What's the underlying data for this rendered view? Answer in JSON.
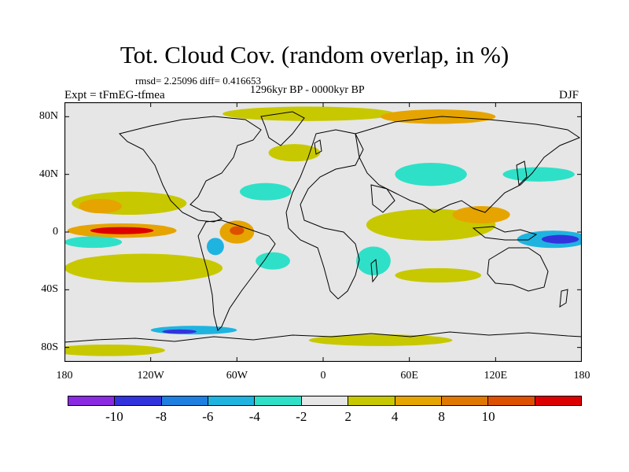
{
  "title": "Tot. Cloud Cov. (random overlap, in %)",
  "stats": "rmsd= 2.25096 diff= 0.416653",
  "period": "1296kyr BP - 0000kyr BP",
  "experiment": "Expt = tFmEG-tfmea",
  "season": "DJF",
  "map": {
    "background": "#e6e6e6",
    "lat_ticks": [
      {
        "label": "80N",
        "lat": 80
      },
      {
        "label": "40N",
        "lat": 40
      },
      {
        "label": "0",
        "lat": 0
      },
      {
        "label": "40S",
        "lat": -40
      },
      {
        "label": "80S",
        "lat": -80
      }
    ],
    "lon_ticks": [
      {
        "label": "180",
        "lon": -180
      },
      {
        "label": "120W",
        "lon": -120
      },
      {
        "label": "60W",
        "lon": -60
      },
      {
        "label": "0",
        "lon": 0
      },
      {
        "label": "60E",
        "lon": 60
      },
      {
        "label": "120E",
        "lon": 120
      },
      {
        "label": "180",
        "lon": 180
      }
    ],
    "lat_range": [
      -90,
      90
    ],
    "lon_range": [
      -180,
      180
    ]
  },
  "colorbar": {
    "colors": [
      "#8a2be2",
      "#3333dd",
      "#1f7fe0",
      "#1fb4e0",
      "#2fe0c8",
      "#e6e6e6",
      "#c8c800",
      "#e6a400",
      "#e07800",
      "#dd5000",
      "#dd0000"
    ],
    "labels": [
      {
        "text": "-10",
        "boundary": 1
      },
      {
        "text": "-8",
        "boundary": 2
      },
      {
        "text": "-6",
        "boundary": 3
      },
      {
        "text": "-4",
        "boundary": 4
      },
      {
        "text": "-2",
        "boundary": 5
      },
      {
        "text": "2",
        "boundary": 6
      },
      {
        "text": "4",
        "boundary": 7
      },
      {
        "text": "8",
        "boundary": 8
      },
      {
        "text": "10",
        "boundary": 9
      }
    ]
  },
  "anomaly_regions": [
    {
      "name": "tropical-east-pacific-positive",
      "lon": -140,
      "lat": 1,
      "rx": 38,
      "ry": 5,
      "color": "#e6a400"
    },
    {
      "name": "tropical-east-pacific-core",
      "lon": -140,
      "lat": 1,
      "rx": 22,
      "ry": 2.5,
      "color": "#dd0000"
    },
    {
      "name": "east-pacific-negative",
      "lon": -160,
      "lat": -7,
      "rx": 20,
      "ry": 4,
      "color": "#2fe0c8"
    },
    {
      "name": "south-pacific-convergence",
      "lon": -135,
      "lat": -22,
      "rx": 40,
      "ry": 6,
      "color": "#e6a400"
    },
    {
      "name": "south-pacific-outer",
      "lon": -125,
      "lat": -25,
      "rx": 55,
      "ry": 10,
      "color": "#c8c800"
    },
    {
      "name": "north-pacific-band",
      "lon": -135,
      "lat": 20,
      "rx": 40,
      "ry": 8,
      "color": "#c8c800"
    },
    {
      "name": "north-pacific-core",
      "lon": -155,
      "lat": 18,
      "rx": 15,
      "ry": 5,
      "color": "#e6a400"
    },
    {
      "name": "amazon-positive",
      "lon": -60,
      "lat": 0,
      "rx": 12,
      "ry": 8,
      "color": "#e6a400"
    },
    {
      "name": "amazon-core",
      "lon": -60,
      "lat": 1,
      "rx": 5,
      "ry": 3,
      "color": "#dd5000"
    },
    {
      "name": "south-america-negative",
      "lon": -75,
      "lat": -10,
      "rx": 6,
      "ry": 6,
      "color": "#1fb4e0"
    },
    {
      "name": "south-atlantic-negative",
      "lon": -35,
      "lat": -20,
      "rx": 12,
      "ry": 6,
      "color": "#2fe0c8"
    },
    {
      "name": "atlantic-north-negative",
      "lon": -40,
      "lat": 28,
      "rx": 18,
      "ry": 6,
      "color": "#2fe0c8"
    },
    {
      "name": "north-atlantic-positive",
      "lon": -20,
      "lat": 55,
      "rx": 18,
      "ry": 6,
      "color": "#c8c800"
    },
    {
      "name": "arctic-positive",
      "lon": -10,
      "lat": 82,
      "rx": 60,
      "ry": 5,
      "color": "#c8c800"
    },
    {
      "name": "siberia-positive",
      "lon": 80,
      "lat": 80,
      "rx": 40,
      "ry": 5,
      "color": "#e6a400"
    },
    {
      "name": "central-asia-negative",
      "lon": 75,
      "lat": 40,
      "rx": 25,
      "ry": 8,
      "color": "#2fe0c8"
    },
    {
      "name": "indian-ocean-positive",
      "lon": 75,
      "lat": 8,
      "rx": 35,
      "ry": 7,
      "color": "#e6a400"
    },
    {
      "name": "indian-ocean-outer",
      "lon": 75,
      "lat": 5,
      "rx": 45,
      "ry": 11,
      "color": "#c8c800"
    },
    {
      "name": "south-africa-negative",
      "lon": 35,
      "lat": -20,
      "rx": 12,
      "ry": 10,
      "color": "#2fe0c8"
    },
    {
      "name": "maritime-continent-positive",
      "lon": 110,
      "lat": 12,
      "rx": 20,
      "ry": 6,
      "color": "#e6a400"
    },
    {
      "name": "west-pacific-negative",
      "lon": 160,
      "lat": -5,
      "rx": 25,
      "ry": 6,
      "color": "#1fb4e0"
    },
    {
      "name": "west-pacific-core",
      "lon": 165,
      "lat": -5,
      "rx": 13,
      "ry": 3,
      "color": "#3333dd"
    },
    {
      "name": "north-pacific-east-negative",
      "lon": 150,
      "lat": 40,
      "rx": 25,
      "ry": 5,
      "color": "#2fe0c8"
    },
    {
      "name": "south-indian-positive",
      "lon": 80,
      "lat": -30,
      "rx": 30,
      "ry": 5,
      "color": "#c8c800"
    },
    {
      "name": "southern-ocean-negative",
      "lon": -90,
      "lat": -68,
      "rx": 30,
      "ry": 3,
      "color": "#1fb4e0"
    },
    {
      "name": "southern-ocean-core",
      "lon": -100,
      "lat": -69,
      "rx": 12,
      "ry": 1.5,
      "color": "#3333dd"
    },
    {
      "name": "southern-ocean-positive",
      "lon": 40,
      "lat": -75,
      "rx": 50,
      "ry": 4,
      "color": "#c8c800"
    },
    {
      "name": "antarctic-positive",
      "lon": -150,
      "lat": -82,
      "rx": 40,
      "ry": 4,
      "color": "#c8c800"
    }
  ]
}
